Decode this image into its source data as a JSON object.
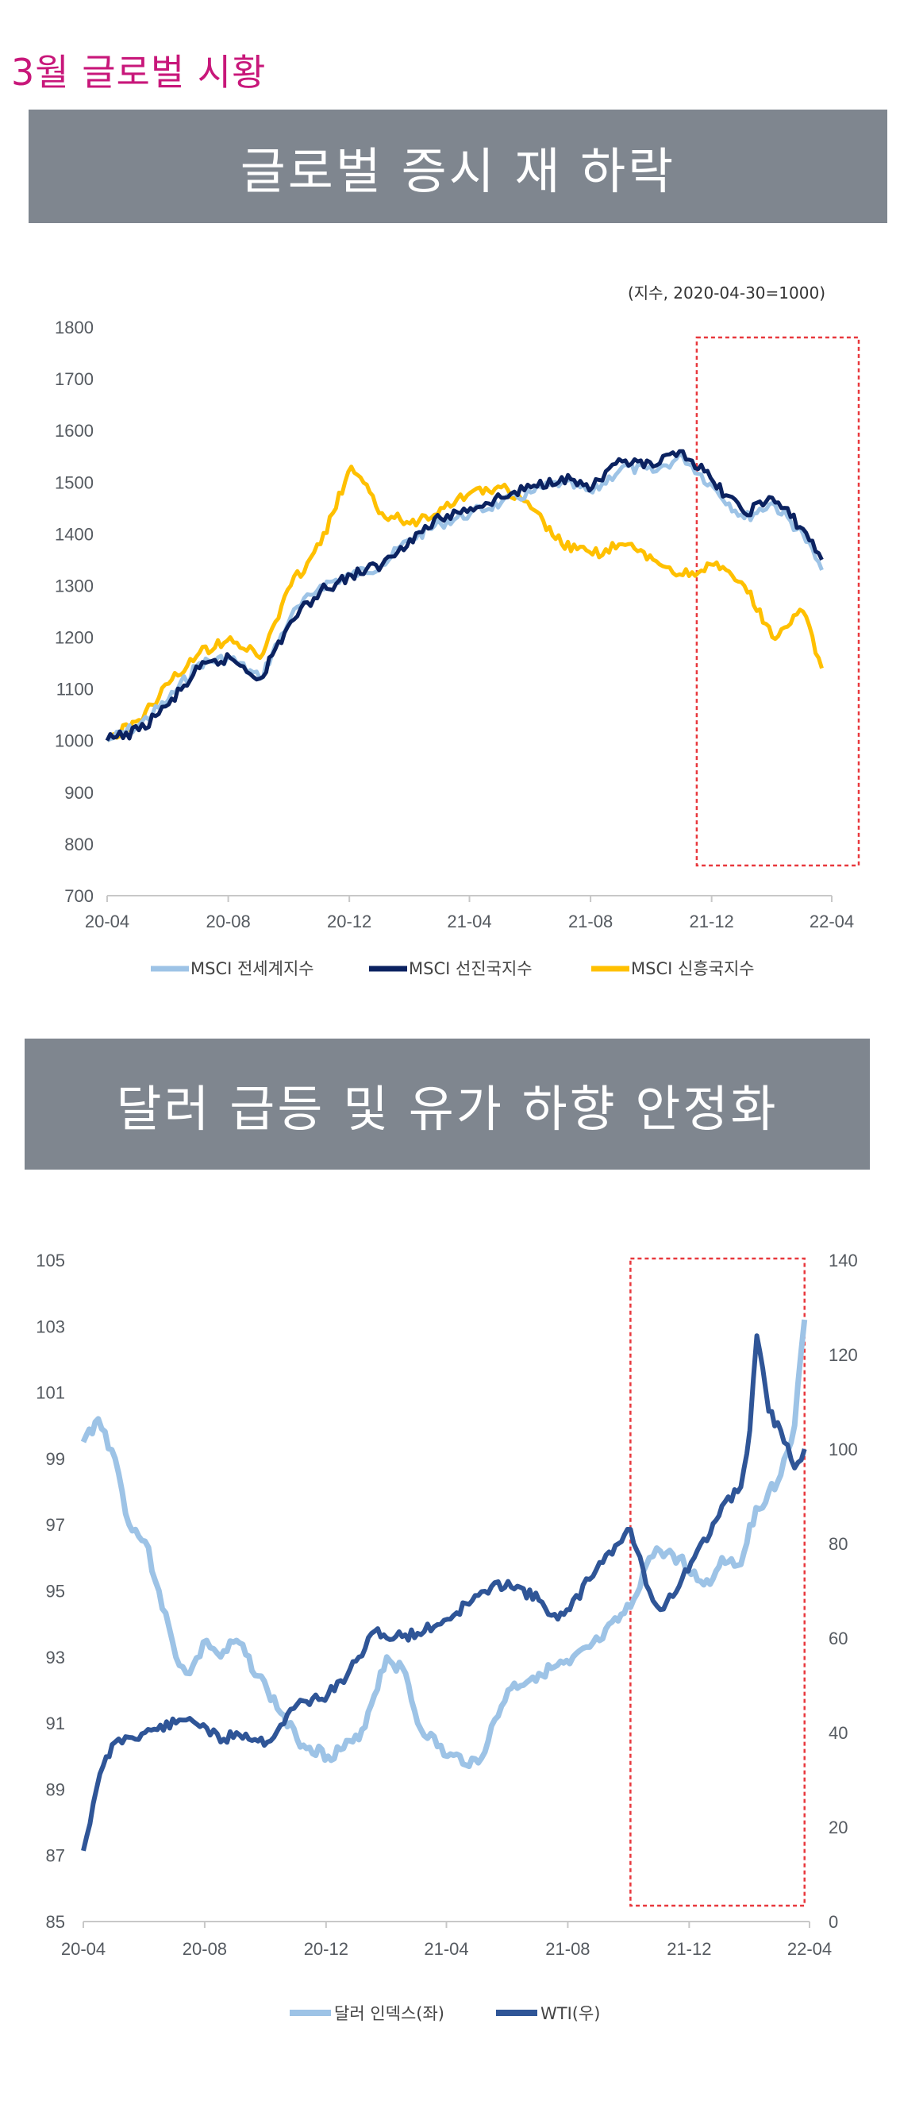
{
  "page": {
    "section_title": "3월 글로벌 시황"
  },
  "panels": [
    {
      "banner": "글로벌 증시 재 하락"
    },
    {
      "banner": "달러 급등 및 유가 하향 안정화"
    }
  ],
  "chart_data": [
    {
      "type": "line",
      "title": "",
      "note": "(지수, 2020-04-30=1000)",
      "x_ticks": [
        "20-04",
        "20-08",
        "20-12",
        "21-04",
        "21-08",
        "21-12",
        "22-04"
      ],
      "x_range": [
        "2020-04-30",
        "2022-04-30"
      ],
      "y_ticks": [
        "1800",
        "1700",
        "1600",
        "1500",
        "1400",
        "1300",
        "1200",
        "1100",
        "1000",
        "900",
        "800",
        "700"
      ],
      "ylim": [
        700,
        1800
      ],
      "grid": false,
      "legend_position": "bottom",
      "highlight": {
        "from": "2021-12-15",
        "to": "2022-04-30",
        "style": "red-dashed-box"
      },
      "x": [
        "2020-04-30",
        "2020-06-01",
        "2020-07-01",
        "2020-08-01",
        "2020-09-01",
        "2020-10-01",
        "2020-11-01",
        "2020-12-01",
        "2021-01-01",
        "2021-02-01",
        "2021-03-01",
        "2021-04-01",
        "2021-05-01",
        "2021-06-01",
        "2021-07-01",
        "2021-08-01",
        "2021-09-01",
        "2021-10-01",
        "2021-11-01",
        "2021-12-01",
        "2022-01-01",
        "2022-02-01",
        "2022-03-01",
        "2022-04-01",
        "2022-04-20"
      ],
      "series": [
        {
          "name": "MSCI 전세계지수",
          "color": "#9dc3e6",
          "values": [
            1000,
            1030,
            1080,
            1150,
            1160,
            1120,
            1240,
            1300,
            1320,
            1340,
            1390,
            1420,
            1440,
            1460,
            1480,
            1500,
            1480,
            1530,
            1520,
            1550,
            1490,
            1430,
            1460,
            1400,
            1330
          ]
        },
        {
          "name": "MSCI 선진국지수",
          "color": "#0b2260",
          "values": [
            1000,
            1020,
            1070,
            1140,
            1160,
            1120,
            1230,
            1290,
            1320,
            1340,
            1390,
            1430,
            1450,
            1470,
            1490,
            1510,
            1490,
            1540,
            1530,
            1560,
            1500,
            1440,
            1470,
            1410,
            1350
          ]
        },
        {
          "name": "MSCI 신흥국지수",
          "color": "#ffc000",
          "values": [
            1000,
            1040,
            1110,
            1170,
            1200,
            1160,
            1300,
            1380,
            1530,
            1440,
            1420,
            1450,
            1480,
            1490,
            1450,
            1380,
            1360,
            1380,
            1350,
            1320,
            1340,
            1300,
            1200,
            1250,
            1140
          ]
        }
      ]
    },
    {
      "type": "line",
      "title": "",
      "x_ticks": [
        "20-04",
        "20-08",
        "20-12",
        "21-04",
        "21-08",
        "21-12",
        "22-04"
      ],
      "x_range": [
        "2020-04-30",
        "2022-04-30"
      ],
      "y_left_ticks": [
        "105",
        "103",
        "101",
        "99",
        "97",
        "95",
        "93",
        "91",
        "89",
        "87",
        "85"
      ],
      "ylim_left": [
        85,
        105
      ],
      "y_right_ticks": [
        "140",
        "120",
        "100",
        "80",
        "60",
        "40",
        "20",
        "0"
      ],
      "ylim_right": [
        0,
        140
      ],
      "grid": false,
      "legend_position": "bottom",
      "highlight": {
        "from": "2021-11-01",
        "to": "2022-04-25",
        "style": "red-dashed-box"
      },
      "series": [
        {
          "name": "달러 인덱스(좌)",
          "axis": "left",
          "color": "#9dc3e6",
          "x": [
            "2020-04-30",
            "2020-05-15",
            "2020-06-01",
            "2020-06-15",
            "2020-07-01",
            "2020-07-15",
            "2020-08-01",
            "2020-08-15",
            "2020-09-01",
            "2020-09-15",
            "2020-10-01",
            "2020-11-01",
            "2020-12-01",
            "2021-01-01",
            "2021-02-01",
            "2021-03-01",
            "2021-03-20",
            "2021-04-01",
            "2021-05-01",
            "2021-06-01",
            "2021-07-01",
            "2021-08-01",
            "2021-09-01",
            "2021-10-01",
            "2021-11-01",
            "2021-11-20",
            "2021-12-01",
            "2021-12-20",
            "2022-01-01",
            "2022-01-20",
            "2022-02-01",
            "2022-02-20",
            "2022-03-01",
            "2022-03-20",
            "2022-04-01",
            "2022-04-15",
            "2022-04-25"
          ],
          "values": [
            99.5,
            100.2,
            99.0,
            97.0,
            96.5,
            95.0,
            93.0,
            92.5,
            93.5,
            93.0,
            93.5,
            92.0,
            90.5,
            90.0,
            90.5,
            93.0,
            92.5,
            91.0,
            90.0,
            89.8,
            92.0,
            92.5,
            92.8,
            93.5,
            94.5,
            96.0,
            96.2,
            96.0,
            95.5,
            95.2,
            96.0,
            95.8,
            97.0,
            98.0,
            98.5,
            100.0,
            103.2
          ]
        },
        {
          "name": "WTI(우)",
          "axis": "right",
          "color": "#2f5597",
          "x": [
            "2020-04-30",
            "2020-05-10",
            "2020-05-20",
            "2020-06-01",
            "2020-06-15",
            "2020-07-01",
            "2020-08-01",
            "2020-08-15",
            "2020-09-01",
            "2020-09-15",
            "2020-10-01",
            "2020-11-01",
            "2020-12-01",
            "2021-01-01",
            "2021-01-20",
            "2021-02-01",
            "2021-02-20",
            "2021-03-01",
            "2021-04-01",
            "2021-05-01",
            "2021-06-01",
            "2021-07-01",
            "2021-08-01",
            "2021-08-20",
            "2021-09-01",
            "2021-10-01",
            "2021-10-20",
            "2021-11-01",
            "2021-11-20",
            "2021-12-01",
            "2021-12-20",
            "2022-01-01",
            "2022-01-20",
            "2022-02-01",
            "2022-02-20",
            "2022-03-01",
            "2022-03-08",
            "2022-03-20",
            "2022-04-01",
            "2022-04-15",
            "2022-04-25"
          ],
          "values": [
            15,
            25,
            33,
            38,
            39,
            40,
            42,
            43,
            41,
            38,
            40,
            38,
            46,
            48,
            52,
            56,
            62,
            60,
            61,
            64,
            69,
            72,
            68,
            64,
            66,
            76,
            80,
            83,
            70,
            66,
            71,
            76,
            82,
            88,
            92,
            104,
            124,
            108,
            104,
            96,
            100
          ]
        }
      ]
    }
  ]
}
